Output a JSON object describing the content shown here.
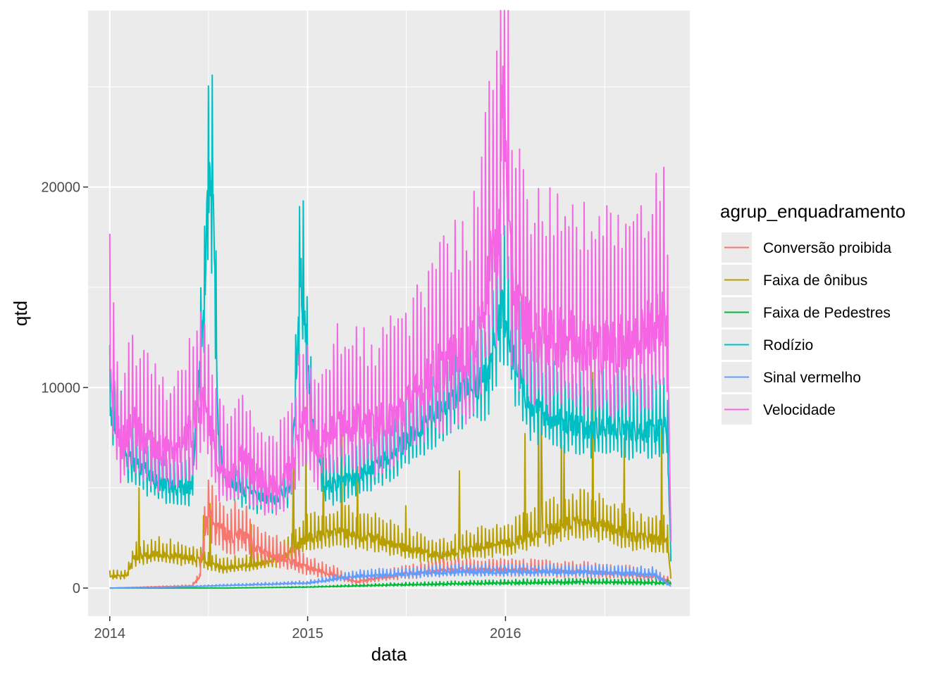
{
  "chart_data": {
    "type": "line",
    "title": "",
    "xlabel": "data",
    "ylabel": "qtd",
    "x_ticks": [
      "2014",
      "2015",
      "2016"
    ],
    "y_ticks": [
      0,
      10000,
      20000
    ],
    "y_tick_labels": [
      "0",
      "10000",
      "20000"
    ],
    "xlim": [
      "2013-11-22",
      "2016-12-06"
    ],
    "ylim": [
      -1400,
      28800
    ],
    "grid": true,
    "legend_position": "right",
    "legend_title": "agrup_enquadramento",
    "series": [
      {
        "name": "Conversão proibida",
        "color": "#F8766D",
        "points": [
          [
            "2014-01-01",
            0
          ],
          [
            "2014-06-01",
            100
          ],
          [
            "2014-06-15",
            500
          ],
          [
            "2014-07-01",
            3800
          ],
          [
            "2014-07-20",
            3000
          ],
          [
            "2014-08-10",
            2500
          ],
          [
            "2014-09-01",
            2700
          ],
          [
            "2014-10-01",
            2000
          ],
          [
            "2014-11-15",
            1500
          ],
          [
            "2015-01-01",
            1000
          ],
          [
            "2015-02-15",
            700
          ],
          [
            "2015-04-01",
            300
          ],
          [
            "2015-06-01",
            600
          ],
          [
            "2015-09-01",
            900
          ],
          [
            "2016-01-01",
            900
          ],
          [
            "2016-06-01",
            800
          ],
          [
            "2016-10-01",
            600
          ],
          [
            "2016-11-01",
            300
          ]
        ]
      },
      {
        "name": "Faixa de ônibus",
        "color": "#B79F00",
        "points": [
          [
            "2014-01-01",
            600
          ],
          [
            "2014-02-01",
            600
          ],
          [
            "2014-02-15",
            1500
          ],
          [
            "2014-04-01",
            1700
          ],
          [
            "2014-06-01",
            1500
          ],
          [
            "2014-08-01",
            1000
          ],
          [
            "2014-10-01",
            1200
          ],
          [
            "2014-11-15",
            1500
          ],
          [
            "2015-01-01",
            2500
          ],
          [
            "2015-03-01",
            2800
          ],
          [
            "2015-05-01",
            2500
          ],
          [
            "2015-07-01",
            2000
          ],
          [
            "2015-09-01",
            1600
          ],
          [
            "2015-11-01",
            2000
          ],
          [
            "2016-01-01",
            2200
          ],
          [
            "2016-03-01",
            2700
          ],
          [
            "2016-05-01",
            3300
          ],
          [
            "2016-07-01",
            3100
          ],
          [
            "2016-09-01",
            2500
          ],
          [
            "2016-10-25",
            2400
          ],
          [
            "2016-11-01",
            600
          ]
        ]
      },
      {
        "name": "Faixa de Pedestres",
        "color": "#00BA38",
        "points": [
          [
            "2014-01-01",
            0
          ],
          [
            "2014-08-01",
            0
          ],
          [
            "2015-01-01",
            50
          ],
          [
            "2015-06-01",
            150
          ],
          [
            "2016-01-01",
            250
          ],
          [
            "2016-06-01",
            300
          ],
          [
            "2016-11-01",
            250
          ]
        ]
      },
      {
        "name": "Rodízio",
        "color": "#00BFC4",
        "points": [
          [
            "2014-01-01",
            9000
          ],
          [
            "2014-02-01",
            6500
          ],
          [
            "2014-03-01",
            6000
          ],
          [
            "2014-04-01",
            5200
          ],
          [
            "2014-05-01",
            5000
          ],
          [
            "2014-06-01",
            5000
          ],
          [
            "2014-06-25",
            14500
          ],
          [
            "2014-07-01",
            20000
          ],
          [
            "2014-07-10",
            19500
          ],
          [
            "2014-07-20",
            8000
          ],
          [
            "2014-08-01",
            5500
          ],
          [
            "2014-09-01",
            5000
          ],
          [
            "2014-10-01",
            4500
          ],
          [
            "2014-11-01",
            4500
          ],
          [
            "2014-12-01",
            5000
          ],
          [
            "2014-12-20",
            15500
          ],
          [
            "2015-01-10",
            8000
          ],
          [
            "2015-02-01",
            5000
          ],
          [
            "2015-04-01",
            5500
          ],
          [
            "2015-06-01",
            6500
          ],
          [
            "2015-08-01",
            8200
          ],
          [
            "2015-10-01",
            9500
          ],
          [
            "2015-12-01",
            10500
          ],
          [
            "2015-12-26",
            14000
          ],
          [
            "2016-01-20",
            11000
          ],
          [
            "2016-02-15",
            9000
          ],
          [
            "2016-04-01",
            8500
          ],
          [
            "2016-06-01",
            8000
          ],
          [
            "2016-08-01",
            8000
          ],
          [
            "2016-10-01",
            7800
          ],
          [
            "2016-10-25",
            8000
          ],
          [
            "2016-11-01",
            1600
          ]
        ]
      },
      {
        "name": "Sinal vermelho",
        "color": "#619CFF",
        "points": [
          [
            "2014-01-01",
            0
          ],
          [
            "2014-05-01",
            50
          ],
          [
            "2014-09-01",
            150
          ],
          [
            "2015-01-01",
            250
          ],
          [
            "2015-04-01",
            600
          ],
          [
            "2015-07-01",
            700
          ],
          [
            "2015-10-01",
            800
          ],
          [
            "2016-01-01",
            800
          ],
          [
            "2016-06-01",
            800
          ],
          [
            "2016-10-01",
            700
          ],
          [
            "2016-11-01",
            100
          ]
        ]
      },
      {
        "name": "Velocidade",
        "color": "#F564E3",
        "points": [
          [
            "2014-01-01",
            11200
          ],
          [
            "2014-01-20",
            7000
          ],
          [
            "2014-02-10",
            8500
          ],
          [
            "2014-03-01",
            7500
          ],
          [
            "2014-04-01",
            7000
          ],
          [
            "2014-05-01",
            6500
          ],
          [
            "2014-06-01",
            8000
          ],
          [
            "2014-06-25",
            9500
          ],
          [
            "2014-07-20",
            6000
          ],
          [
            "2014-08-15",
            5500
          ],
          [
            "2014-09-01",
            6500
          ],
          [
            "2014-10-01",
            5500
          ],
          [
            "2014-11-01",
            5000
          ],
          [
            "2014-12-01",
            6000
          ],
          [
            "2014-12-25",
            8500
          ],
          [
            "2015-01-20",
            7000
          ],
          [
            "2015-03-01",
            8500
          ],
          [
            "2015-05-01",
            8000
          ],
          [
            "2015-07-01",
            9000
          ],
          [
            "2015-09-01",
            11000
          ],
          [
            "2015-11-01",
            12000
          ],
          [
            "2015-12-20",
            18000
          ],
          [
            "2015-12-28",
            25500
          ],
          [
            "2016-01-10",
            16000
          ],
          [
            "2016-02-01",
            13500
          ],
          [
            "2016-03-01",
            12500
          ],
          [
            "2016-05-01",
            12500
          ],
          [
            "2016-07-01",
            12000
          ],
          [
            "2016-09-01",
            12500
          ],
          [
            "2016-10-25",
            13500
          ],
          [
            "2016-11-01",
            3000
          ]
        ]
      }
    ]
  }
}
